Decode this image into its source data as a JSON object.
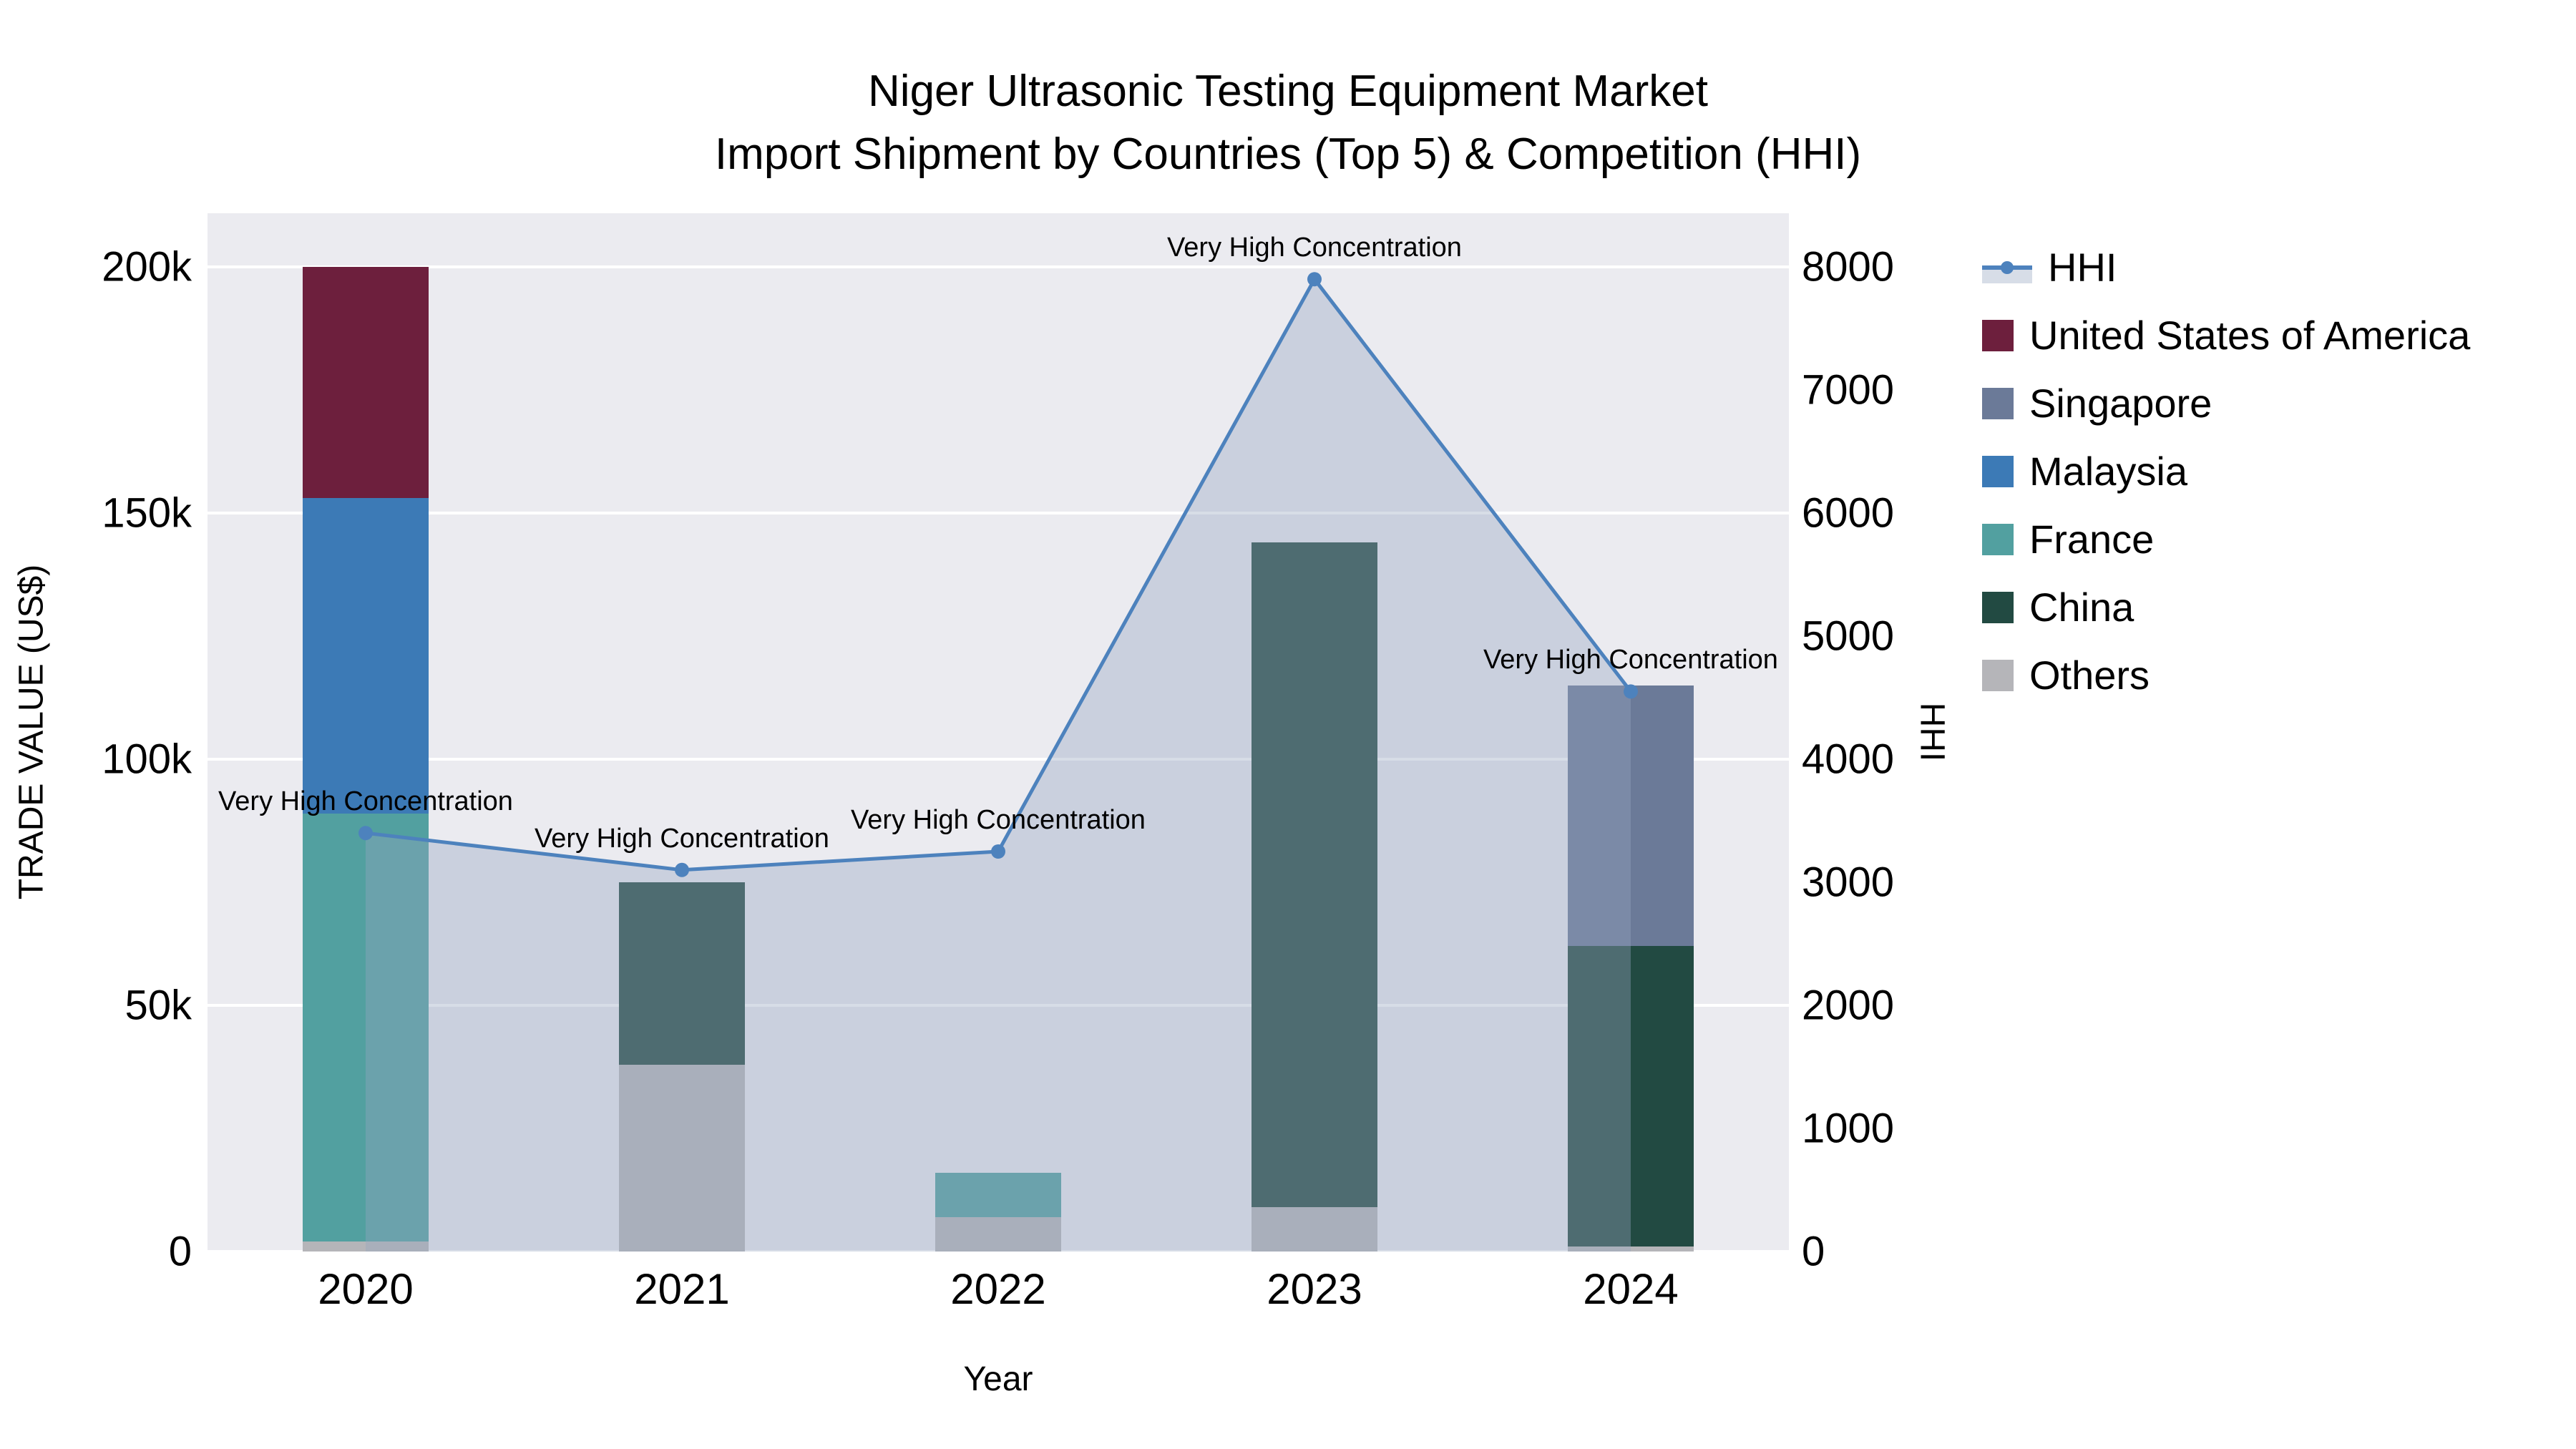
{
  "title": {
    "line1": "Niger Ultrasonic Testing Equipment Market",
    "line2": "Import Shipment by Countries (Top 5) & Competition (HHI)"
  },
  "axes": {
    "x_title": "Year",
    "y_left_title": "TRADE VALUE (US$)",
    "y_right_title": "HHI",
    "y_left_ticks": [
      {
        "value": 0,
        "label": "0"
      },
      {
        "value": 50000,
        "label": "50k"
      },
      {
        "value": 100000,
        "label": "100k"
      },
      {
        "value": 150000,
        "label": "150k"
      },
      {
        "value": 200000,
        "label": "200k"
      }
    ],
    "y_right_ticks": [
      {
        "value": 0,
        "label": "0"
      },
      {
        "value": 1000,
        "label": "1000"
      },
      {
        "value": 2000,
        "label": "2000"
      },
      {
        "value": 3000,
        "label": "3000"
      },
      {
        "value": 4000,
        "label": "4000"
      },
      {
        "value": 5000,
        "label": "5000"
      },
      {
        "value": 6000,
        "label": "6000"
      },
      {
        "value": 7000,
        "label": "7000"
      },
      {
        "value": 8000,
        "label": "8000"
      }
    ]
  },
  "legend": {
    "items": [
      {
        "label": "HHI",
        "type": "line",
        "color": "#4d82bd"
      },
      {
        "label": "United States of America",
        "type": "swatch",
        "color": "#6d1f3d"
      },
      {
        "label": "Singapore",
        "type": "swatch",
        "color": "#6b7a98"
      },
      {
        "label": "Malaysia",
        "type": "swatch",
        "color": "#3c7ab6"
      },
      {
        "label": "France",
        "type": "swatch",
        "color": "#52a0a0"
      },
      {
        "label": "China",
        "type": "swatch",
        "color": "#224a42"
      },
      {
        "label": "Others",
        "type": "swatch",
        "color": "#b5b5b9"
      }
    ]
  },
  "chart_data": {
    "type": "bar+line",
    "title": "Niger Ultrasonic Testing Equipment Market — Import Shipment by Countries (Top 5) & Competition (HHI)",
    "xlabel": "Year",
    "ylabel_left": "TRADE VALUE (US$)",
    "ylabel_right": "HHI",
    "categories": [
      "2020",
      "2021",
      "2022",
      "2023",
      "2024"
    ],
    "stacked": true,
    "grid": true,
    "legend_position": "right",
    "y_left_range": [
      0,
      210900
    ],
    "y_right_range": [
      0,
      8436
    ],
    "series": [
      {
        "name": "Others",
        "color": "#b5b5b9",
        "values": [
          2000,
          38000,
          7000,
          9000,
          1000
        ]
      },
      {
        "name": "China",
        "color": "#224a42",
        "values": [
          0,
          37000,
          0,
          135000,
          61000
        ]
      },
      {
        "name": "France",
        "color": "#52a0a0",
        "values": [
          87000,
          0,
          9000,
          0,
          0
        ]
      },
      {
        "name": "Malaysia",
        "color": "#3c7ab6",
        "values": [
          64000,
          0,
          0,
          0,
          0
        ]
      },
      {
        "name": "Singapore",
        "color": "#6b7a98",
        "values": [
          0,
          0,
          0,
          0,
          53000
        ]
      },
      {
        "name": "United States of America",
        "color": "#6d1f3d",
        "values": [
          47000,
          0,
          0,
          0,
          0
        ]
      }
    ],
    "line": {
      "name": "HHI",
      "color": "#4d82bd",
      "fill": "rgba(150,165,192,0.38)",
      "values": [
        3400,
        3100,
        3250,
        7900,
        4550
      ]
    },
    "annotations": [
      {
        "x": "2020",
        "text": "Very High Concentration"
      },
      {
        "x": "2021",
        "text": "Very High Concentration"
      },
      {
        "x": "2022",
        "text": "Very High Concentration"
      },
      {
        "x": "2023",
        "text": "Very High Concentration"
      },
      {
        "x": "2024",
        "text": "Very High Concentration"
      }
    ]
  }
}
